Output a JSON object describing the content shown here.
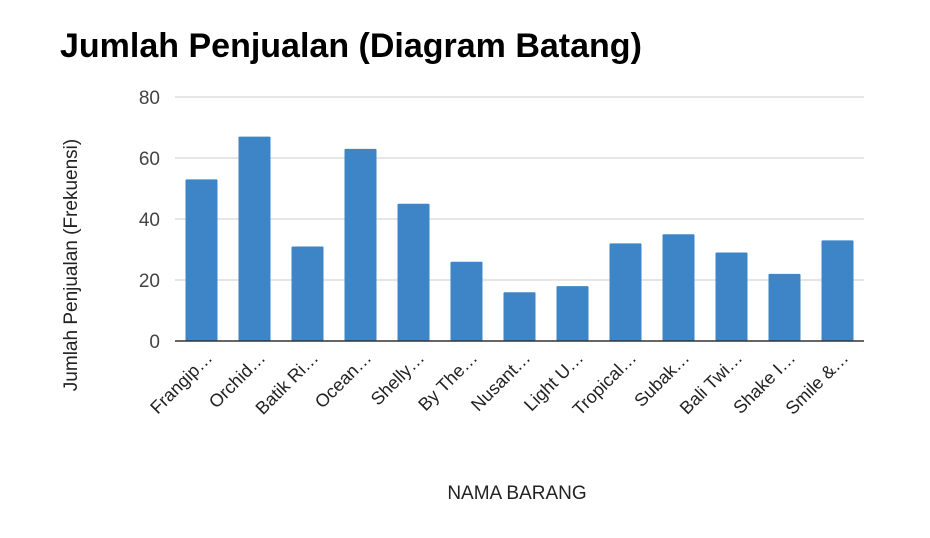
{
  "chart_data": {
    "type": "bar",
    "title": "Jumlah Penjualan (Diagram Batang)",
    "xlabel": "NAMA BARANG",
    "ylabel": "Jumlah Penjualan (Frekuensi)",
    "ylim": [
      0,
      80
    ],
    "yticks": [
      0,
      20,
      40,
      60,
      80
    ],
    "grid": true,
    "categories": [
      "Frangip…",
      "Orchid…",
      "Batik Ri…",
      "Ocean…",
      "Shelly…",
      "By The…",
      "Nusant…",
      "Light U…",
      "Tropical…",
      "Subak…",
      "Bali Twi…",
      "Shake I…",
      "Smile &…"
    ],
    "values": [
      53,
      67,
      31,
      63,
      45,
      26,
      16,
      18,
      32,
      35,
      29,
      22,
      33
    ],
    "bar_color": "#3d85c6",
    "grid_color": "#cccccc",
    "axis_color": "#333333"
  }
}
